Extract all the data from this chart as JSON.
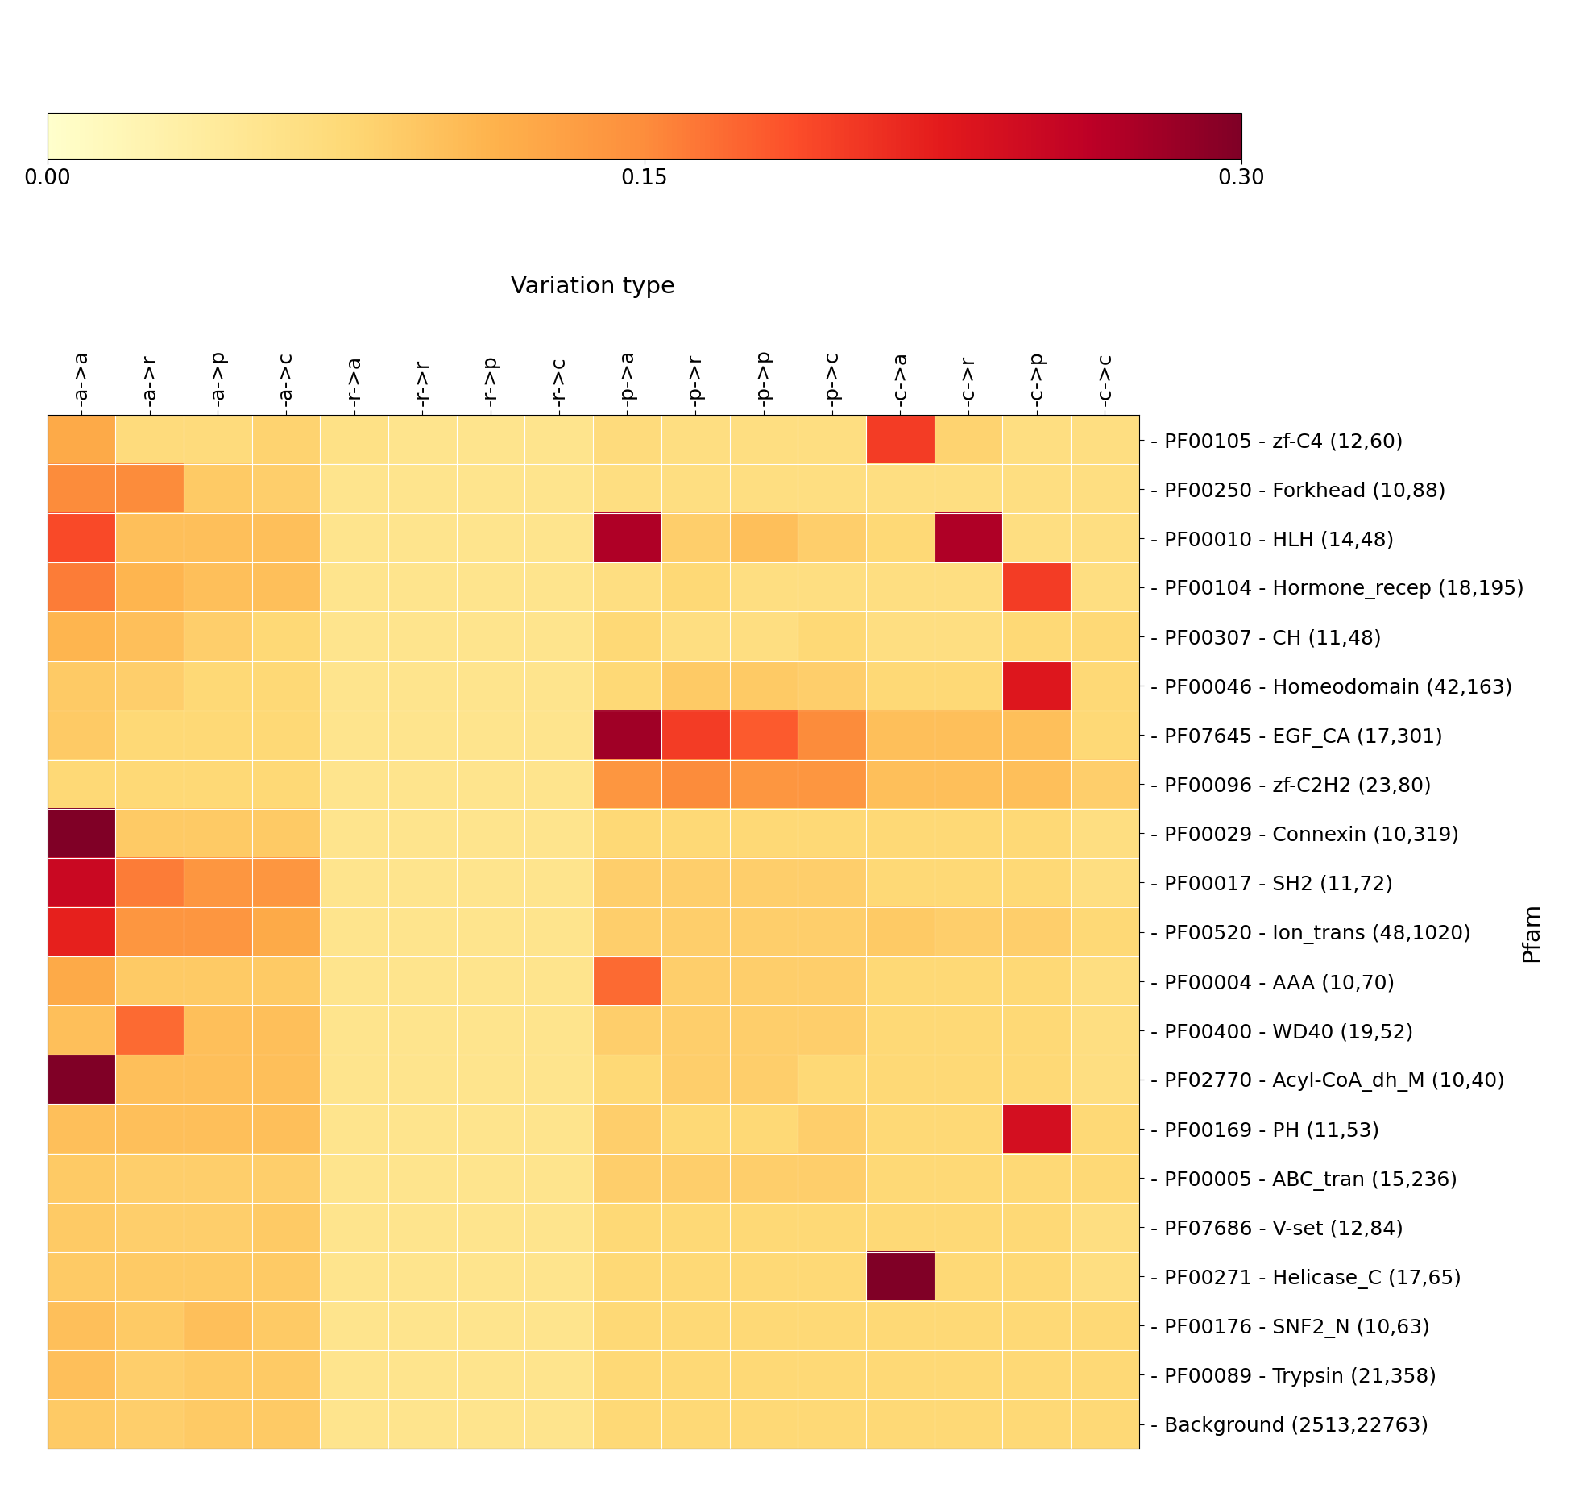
{
  "col_labels": [
    "-a->a",
    "-a->r",
    "-a->p",
    "-a->c",
    "-r->a",
    "-r->r",
    "-r->p",
    "-r->c",
    "-p->a",
    "-p->r",
    "-p->p",
    "-p->c",
    "-c->a",
    "-c->r",
    "-c->p",
    "-c->c"
  ],
  "row_labels": [
    "PF00105 - zf-C4 (12,60)",
    "PF00250 - Forkhead (10,88)",
    "PF00010 - HLH (14,48)",
    "PF00104 - Hormone_recep (18,195)",
    "PF00307 - CH (11,48)",
    "PF00046 - Homeodomain (42,163)",
    "PF07645 - EGF_CA (17,301)",
    "PF00096 - zf-C2H2 (23,80)",
    "PF00029 - Connexin (10,319)",
    "PF00017 - SH2 (11,72)",
    "PF00520 - Ion_trans (48,1020)",
    "PF00004 - AAA (10,70)",
    "PF00400 - WD40 (19,52)",
    "PF02770 - Acyl-CoA_dh_M (10,40)",
    "PF00169 - PH (11,53)",
    "PF00005 - ABC_tran (15,236)",
    "PF07686 - V-set (12,84)",
    "PF00271 - Helicase_C (17,65)",
    "PF00176 - SNF2_N (10,63)",
    "PF00089 - Trypsin (21,358)",
    "Background (2513,22763)"
  ],
  "data": [
    [
      0.12,
      0.07,
      0.07,
      0.08,
      0.06,
      0.055,
      0.055,
      0.055,
      0.07,
      0.065,
      0.065,
      0.065,
      0.2,
      0.08,
      0.065,
      0.065
    ],
    [
      0.15,
      0.15,
      0.09,
      0.085,
      0.055,
      0.055,
      0.055,
      0.055,
      0.065,
      0.065,
      0.065,
      0.065,
      0.065,
      0.065,
      0.065,
      0.065
    ],
    [
      0.19,
      0.1,
      0.1,
      0.1,
      0.055,
      0.055,
      0.055,
      0.055,
      0.27,
      0.085,
      0.1,
      0.085,
      0.075,
      0.27,
      0.065,
      0.065
    ],
    [
      0.16,
      0.11,
      0.1,
      0.1,
      0.055,
      0.055,
      0.055,
      0.055,
      0.065,
      0.075,
      0.065,
      0.065,
      0.065,
      0.065,
      0.2,
      0.065
    ],
    [
      0.11,
      0.1,
      0.085,
      0.075,
      0.055,
      0.055,
      0.055,
      0.055,
      0.075,
      0.065,
      0.065,
      0.075,
      0.065,
      0.065,
      0.075,
      0.075
    ],
    [
      0.09,
      0.085,
      0.075,
      0.075,
      0.055,
      0.055,
      0.055,
      0.055,
      0.075,
      0.09,
      0.09,
      0.085,
      0.075,
      0.075,
      0.23,
      0.075
    ],
    [
      0.09,
      0.075,
      0.075,
      0.075,
      0.055,
      0.055,
      0.055,
      0.055,
      0.28,
      0.2,
      0.18,
      0.15,
      0.1,
      0.1,
      0.1,
      0.075
    ],
    [
      0.075,
      0.075,
      0.075,
      0.075,
      0.055,
      0.055,
      0.055,
      0.055,
      0.14,
      0.15,
      0.14,
      0.14,
      0.1,
      0.1,
      0.1,
      0.085
    ],
    [
      0.3,
      0.09,
      0.09,
      0.09,
      0.055,
      0.055,
      0.055,
      0.055,
      0.075,
      0.075,
      0.075,
      0.075,
      0.075,
      0.075,
      0.075,
      0.065
    ],
    [
      0.25,
      0.16,
      0.14,
      0.14,
      0.055,
      0.055,
      0.055,
      0.055,
      0.085,
      0.085,
      0.085,
      0.085,
      0.075,
      0.075,
      0.075,
      0.065
    ],
    [
      0.22,
      0.14,
      0.14,
      0.12,
      0.055,
      0.055,
      0.055,
      0.055,
      0.085,
      0.085,
      0.085,
      0.085,
      0.09,
      0.085,
      0.085,
      0.075
    ],
    [
      0.12,
      0.09,
      0.09,
      0.09,
      0.055,
      0.055,
      0.055,
      0.055,
      0.17,
      0.085,
      0.085,
      0.085,
      0.075,
      0.075,
      0.075,
      0.065
    ],
    [
      0.1,
      0.17,
      0.1,
      0.1,
      0.055,
      0.055,
      0.055,
      0.055,
      0.085,
      0.085,
      0.085,
      0.085,
      0.075,
      0.075,
      0.075,
      0.065
    ],
    [
      0.3,
      0.1,
      0.1,
      0.1,
      0.055,
      0.055,
      0.055,
      0.055,
      0.075,
      0.085,
      0.085,
      0.075,
      0.075,
      0.075,
      0.075,
      0.065
    ],
    [
      0.1,
      0.1,
      0.1,
      0.1,
      0.055,
      0.055,
      0.055,
      0.055,
      0.085,
      0.075,
      0.075,
      0.085,
      0.075,
      0.075,
      0.24,
      0.075
    ],
    [
      0.09,
      0.085,
      0.085,
      0.085,
      0.055,
      0.055,
      0.055,
      0.055,
      0.085,
      0.085,
      0.085,
      0.085,
      0.075,
      0.075,
      0.075,
      0.075
    ],
    [
      0.09,
      0.085,
      0.085,
      0.09,
      0.055,
      0.055,
      0.055,
      0.055,
      0.075,
      0.075,
      0.075,
      0.075,
      0.075,
      0.075,
      0.075,
      0.065
    ],
    [
      0.09,
      0.09,
      0.09,
      0.09,
      0.055,
      0.055,
      0.055,
      0.055,
      0.075,
      0.075,
      0.075,
      0.075,
      0.3,
      0.075,
      0.075,
      0.065
    ],
    [
      0.1,
      0.09,
      0.1,
      0.09,
      0.055,
      0.055,
      0.055,
      0.055,
      0.075,
      0.075,
      0.075,
      0.075,
      0.075,
      0.075,
      0.075,
      0.075
    ],
    [
      0.1,
      0.085,
      0.09,
      0.09,
      0.055,
      0.055,
      0.055,
      0.055,
      0.075,
      0.075,
      0.075,
      0.075,
      0.075,
      0.075,
      0.075,
      0.075
    ],
    [
      0.09,
      0.085,
      0.09,
      0.09,
      0.055,
      0.055,
      0.055,
      0.055,
      0.075,
      0.075,
      0.075,
      0.075,
      0.075,
      0.075,
      0.075,
      0.075
    ]
  ],
  "vmin": 0.0,
  "vmax": 0.3,
  "colorbar_ticks": [
    0.0,
    0.15,
    0.3
  ],
  "colorbar_tick_labels": [
    "0.00",
    "0.15",
    "0.30"
  ],
  "xlabel": "Variation type",
  "ylabel": "Pfam",
  "background_color": "#ffffff",
  "tick_fontsize": 18,
  "label_fontsize": 21
}
